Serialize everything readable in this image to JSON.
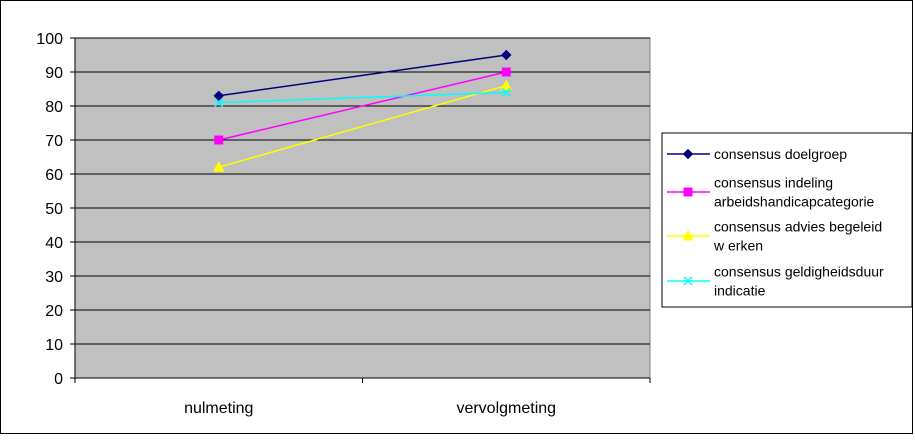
{
  "chart_data": {
    "type": "line",
    "categories": [
      "nulmeting",
      "vervolgmeting"
    ],
    "ylim": [
      0,
      100
    ],
    "yticks": [
      0,
      10,
      20,
      30,
      40,
      50,
      60,
      70,
      80,
      90,
      100
    ],
    "grid": true,
    "legend_position": "right",
    "plot_background": "#c0c0c0",
    "series": [
      {
        "name": "consensus doelgroep",
        "name_lines": [
          "consensus doelgroep"
        ],
        "values": [
          83,
          95
        ],
        "color": "#000080",
        "marker": "diamond"
      },
      {
        "name": "consensus indeling arbeidshandicapcategorie",
        "name_lines": [
          "consensus indeling",
          "arbeidshandicapcategorie"
        ],
        "values": [
          70,
          90
        ],
        "color": "#ff00ff",
        "marker": "square"
      },
      {
        "name": "consensus advies begeleid w erken",
        "name_lines": [
          "consensus advies begeleid",
          "w erken"
        ],
        "values": [
          62,
          86
        ],
        "color": "#ffff00",
        "marker": "triangle"
      },
      {
        "name": "consensus geldigheidsduur indicatie",
        "name_lines": [
          "consensus geldigheidsduur",
          "indicatie"
        ],
        "values": [
          81,
          84
        ],
        "color": "#00ffff",
        "marker": "x"
      }
    ]
  }
}
